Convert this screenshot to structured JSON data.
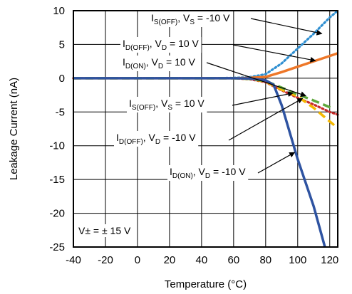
{
  "chart_data": {
    "type": "line",
    "xlabel": "Temperature (°C)",
    "ylabel": "Leakage Current (nA)",
    "xlim": [
      -40,
      125
    ],
    "ylim": [
      -25,
      10
    ],
    "xticks": [
      -40,
      -20,
      0,
      20,
      40,
      60,
      80,
      100,
      120
    ],
    "yticks": [
      10,
      5,
      0,
      -5,
      -10,
      -15,
      -20,
      -25
    ],
    "grid": true,
    "condition": "V± = ± 15 V",
    "series": [
      {
        "name": "IS(OFF), VS = -10 V",
        "color": "#2f8fd1",
        "style": "dotted",
        "points": [
          [
            -40,
            0
          ],
          [
            0,
            0
          ],
          [
            40,
            0
          ],
          [
            60,
            0.05
          ],
          [
            70,
            0.15
          ],
          [
            80,
            0.6
          ],
          [
            90,
            2.2
          ],
          [
            100,
            4.4
          ],
          [
            110,
            6.6
          ],
          [
            120,
            9
          ],
          [
            125,
            10
          ]
        ]
      },
      {
        "name": "ID(OFF), VD = 10 V",
        "color": "#ee7728",
        "style": "solid",
        "points": [
          [
            -40,
            0
          ],
          [
            0,
            0
          ],
          [
            40,
            0
          ],
          [
            60,
            0
          ],
          [
            70,
            0.05
          ],
          [
            80,
            0.2
          ],
          [
            90,
            0.9
          ],
          [
            100,
            1.7
          ],
          [
            110,
            2.5
          ],
          [
            120,
            3.3
          ],
          [
            125,
            3.7
          ]
        ]
      },
      {
        "name": "ID(ON), VD = 10 V",
        "color": "#c72a2a",
        "style": "dotted",
        "points": [
          [
            -40,
            0
          ],
          [
            0,
            0
          ],
          [
            40,
            0
          ],
          [
            60,
            0
          ],
          [
            70,
            -0.15
          ],
          [
            80,
            -0.6
          ],
          [
            90,
            -1.8
          ],
          [
            100,
            -2.9
          ],
          [
            110,
            -3.9
          ],
          [
            120,
            -5
          ],
          [
            125,
            -5.4
          ]
        ]
      },
      {
        "name": "IS(OFF), VS = 10 V",
        "color": "#f5b800",
        "style": "dashed",
        "points": [
          [
            -40,
            0
          ],
          [
            0,
            0
          ],
          [
            40,
            0
          ],
          [
            60,
            0
          ],
          [
            70,
            -0.1
          ],
          [
            80,
            -0.5
          ],
          [
            90,
            -1.7
          ],
          [
            100,
            -2.7
          ],
          [
            110,
            -4.4
          ],
          [
            120,
            -6.4
          ],
          [
            123,
            -7
          ]
        ]
      },
      {
        "name": "ID(OFF), VD = -10 V",
        "color": "#5ea83c",
        "style": "dashed",
        "points": [
          [
            -40,
            0
          ],
          [
            0,
            0
          ],
          [
            40,
            0
          ],
          [
            60,
            0
          ],
          [
            70,
            -0.1
          ],
          [
            80,
            -0.4
          ],
          [
            90,
            -1.4
          ],
          [
            100,
            -2.4
          ],
          [
            110,
            -3.3
          ],
          [
            120,
            -4.3
          ],
          [
            122,
            -4.5
          ]
        ]
      },
      {
        "name": "ID(ON), VD = -10 V",
        "color": "#2e53a1",
        "style": "solid",
        "points": [
          [
            -40,
            0
          ],
          [
            0,
            0
          ],
          [
            40,
            0
          ],
          [
            60,
            0
          ],
          [
            70,
            -0.05
          ],
          [
            80,
            -0.3
          ],
          [
            85,
            -1
          ],
          [
            90,
            -4
          ],
          [
            100,
            -12
          ],
          [
            110,
            -19
          ],
          [
            117,
            -25
          ]
        ]
      }
    ],
    "annotations": [
      {
        "text": "IS(OFF), VS = -10 V",
        "main": "I",
        "sub": "S(OFF)",
        "rest": ", V",
        "sub2": "S",
        "tail": " = -10 V",
        "series": "IS(OFF), VS = -10 V",
        "at": [
          -35,
          8.8
        ],
        "anchor": "start",
        "arrow_to": [
          115,
          6.6
        ]
      },
      {
        "text": "ID(OFF), VD = 10 V",
        "main": "I",
        "sub": "D(OFF)",
        "rest": ", V",
        "sub2": "D",
        "tail": " = 10 V",
        "series": "ID(OFF), VD = 10 V",
        "at": [
          -35,
          5.7
        ],
        "anchor": "start",
        "arrow_to": [
          111,
          2.6
        ]
      },
      {
        "text": "ID(ON), VD = 10 V",
        "main": "I",
        "sub": "D(ON)",
        "rest": ", V",
        "sub2": "D",
        "tail": " = 10 V",
        "series": "ID(ON), VD = 10 V",
        "at": [
          -35,
          2.2
        ],
        "anchor": "start",
        "arrow_to": [
          105,
          -2.6
        ]
      },
      {
        "text": "IS(OFF), VS = 10 V",
        "main": "I",
        "sub": "S(OFF)",
        "rest": ", V",
        "sub2": "S",
        "tail": " = 10 V",
        "series": "IS(OFF), VS = 10 V",
        "at": [
          -35,
          -3.7
        ],
        "anchor": "start",
        "arrow_to": [
          97,
          -2.2
        ]
      },
      {
        "text": "ID(OFF), VD = -10 V",
        "main": "I",
        "sub": "D(OFF)",
        "rest": ", V",
        "sub2": "D",
        "tail": " = -10 V",
        "series": "ID(OFF), VD = -10 V",
        "at": [
          -35,
          -9.7
        ],
        "anchor": "start",
        "arrow_to": [
          103,
          -3
        ]
      },
      {
        "text": "ID(ON), VD = -10 V",
        "main": "I",
        "sub": "D(ON)",
        "rest": ", V",
        "sub2": "D",
        "tail": " = -10 V",
        "series": "ID(ON), VD = -10 V",
        "at": [
          -35,
          -14.8
        ],
        "anchor": "start",
        "arrow_to": [
          98,
          -11
        ]
      }
    ]
  }
}
